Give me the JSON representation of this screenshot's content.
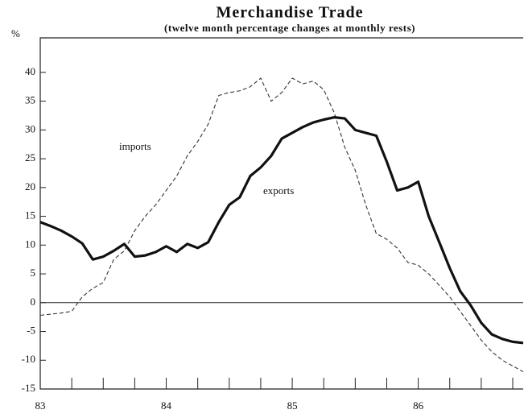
{
  "chart_data": {
    "type": "line",
    "title": "Merchandise Trade",
    "subtitle": "(twelve month percentage changes at monthly rests)",
    "y_label": "%",
    "x": [
      83,
      83.083,
      83.167,
      83.25,
      83.333,
      83.417,
      83.5,
      83.583,
      83.667,
      83.75,
      83.833,
      83.917,
      84,
      84.083,
      84.167,
      84.25,
      84.333,
      84.417,
      84.5,
      84.583,
      84.667,
      84.75,
      84.833,
      84.917,
      85,
      85.083,
      85.167,
      85.25,
      85.333,
      85.417,
      85.5,
      85.583,
      85.667,
      85.75,
      85.833,
      85.917,
      86,
      86.083,
      86.167,
      86.25,
      86.333,
      86.417,
      86.5,
      86.583,
      86.667,
      86.75,
      86.833
    ],
    "series": [
      {
        "name": "imports",
        "color": "#333333",
        "dashed": true,
        "values": [
          -2.2,
          -2,
          -1.8,
          -1.5,
          1,
          2.5,
          3.5,
          7.5,
          9,
          12.5,
          15,
          17,
          19.5,
          22,
          25.5,
          28,
          31,
          36,
          36.5,
          36.8,
          37.5,
          39,
          35,
          36.5,
          39,
          38,
          38.5,
          37,
          33,
          27,
          23,
          17,
          12,
          11,
          9.5,
          7,
          6.5,
          5,
          3,
          1,
          -1.5,
          -4,
          -6.5,
          -8.5,
          -10,
          -11,
          -12
        ]
      },
      {
        "name": "exports",
        "color": "#111111",
        "dashed": false,
        "values": [
          14,
          13.3,
          12.5,
          11.5,
          10.3,
          7.5,
          8,
          9,
          10.2,
          8,
          8.2,
          8.8,
          9.8,
          8.8,
          10.2,
          9.5,
          10.5,
          14,
          17,
          18.3,
          22,
          23.5,
          25.5,
          28.5,
          29.5,
          30.5,
          31.3,
          31.8,
          32.2,
          32,
          30,
          29.5,
          29,
          24.5,
          19.5,
          20,
          21,
          15,
          10.5,
          6,
          2,
          -0.5,
          -3.5,
          -5.5,
          -6.3,
          -6.8,
          -7
        ]
      }
    ],
    "xlim": [
      83,
      86.833
    ],
    "xticks": [
      83,
      84,
      85,
      86
    ],
    "xminor_ticks": [
      83.25,
      83.5,
      83.75,
      84.25,
      84.5,
      84.75,
      85.25,
      85.5,
      85.75,
      86.25,
      86.5,
      86.75
    ],
    "ylim": [
      -15,
      46
    ],
    "yticks": [
      -15,
      -10,
      -5,
      0,
      5,
      10,
      15,
      20,
      25,
      30,
      35,
      40
    ],
    "zero_line": true
  }
}
